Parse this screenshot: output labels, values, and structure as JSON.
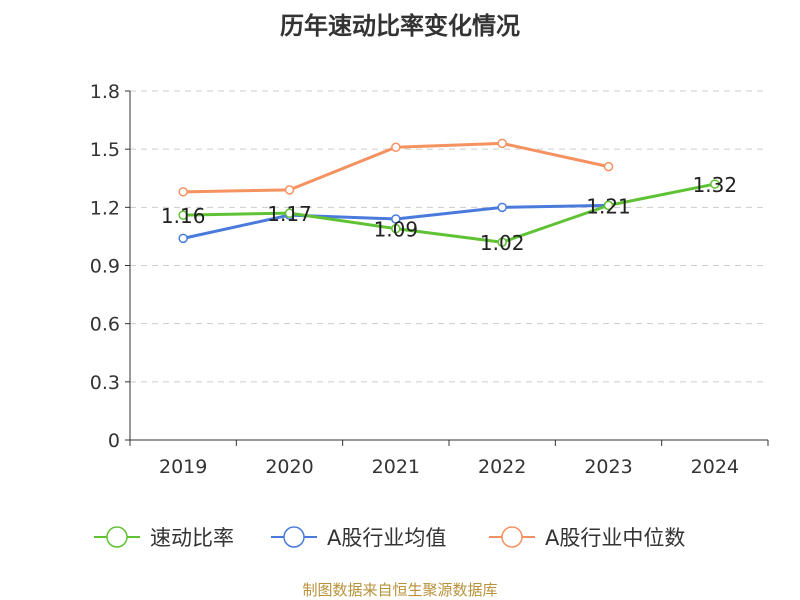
{
  "title": "历年速动比率变化情况",
  "source": "制图数据来自恒生聚源数据库",
  "chart_data": {
    "type": "line",
    "title": "历年速动比率变化情况",
    "xlabel": "",
    "ylabel": "",
    "categories": [
      "2019",
      "2020",
      "2021",
      "2022",
      "2023",
      "2024"
    ],
    "ylim": [
      0,
      1.8
    ],
    "yticks": [
      "0",
      "0.3",
      "0.6",
      "0.9",
      "1.2",
      "1.5",
      "1.8"
    ],
    "grid": true,
    "legend_position": "bottom",
    "series": [
      {
        "name": "速动比率",
        "color": "#5fc234",
        "values": [
          1.16,
          1.17,
          1.09,
          1.02,
          1.21,
          1.32
        ],
        "labels": [
          "1.16",
          "1.17",
          "1.09",
          "1.02",
          "1.21",
          "1.32"
        ]
      },
      {
        "name": "A股行业均值",
        "color": "#4a7bdc",
        "values": [
          1.04,
          1.16,
          1.14,
          1.2,
          1.21,
          null
        ],
        "labels": []
      },
      {
        "name": "A股行业中位数",
        "color": "#f59260",
        "values": [
          1.28,
          1.29,
          1.51,
          1.53,
          1.41,
          null
        ],
        "labels": []
      }
    ]
  }
}
